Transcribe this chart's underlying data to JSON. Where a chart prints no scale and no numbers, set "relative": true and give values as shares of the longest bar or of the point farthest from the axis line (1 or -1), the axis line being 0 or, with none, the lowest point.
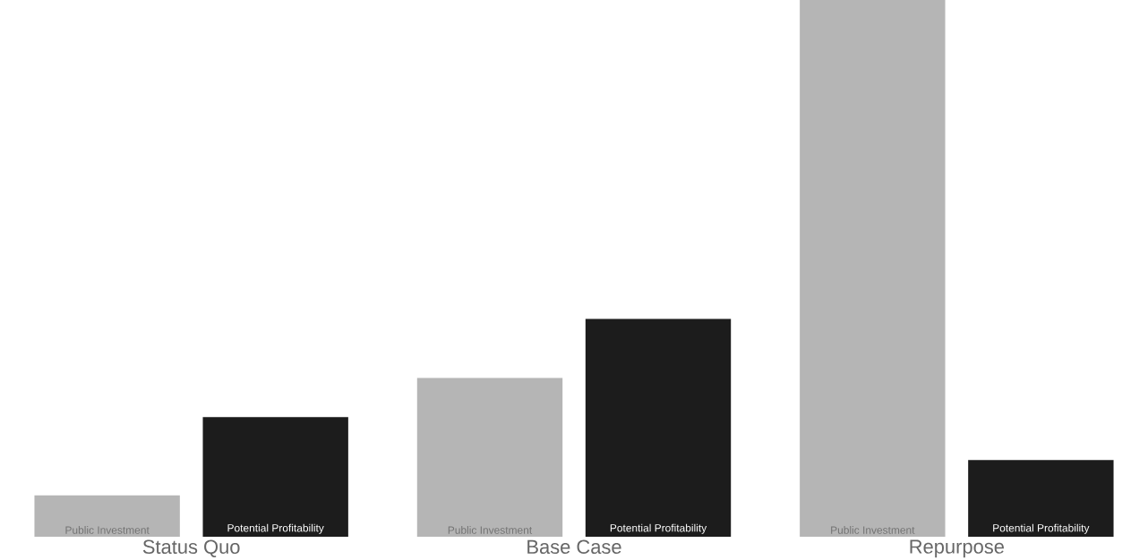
{
  "chart_data": {
    "type": "bar",
    "relative": true,
    "categories": [
      "Status Quo",
      "Base Case",
      "Repurpose"
    ],
    "series": [
      {
        "name": "Public Investment",
        "color": "#b5b5b5",
        "values": [
          0.077,
          0.296,
          1
        ]
      },
      {
        "name": "Potential Profitability",
        "color": "#1c1c1c",
        "values": [
          0.223,
          0.406,
          0.143
        ]
      }
    ],
    "legend": false
  }
}
